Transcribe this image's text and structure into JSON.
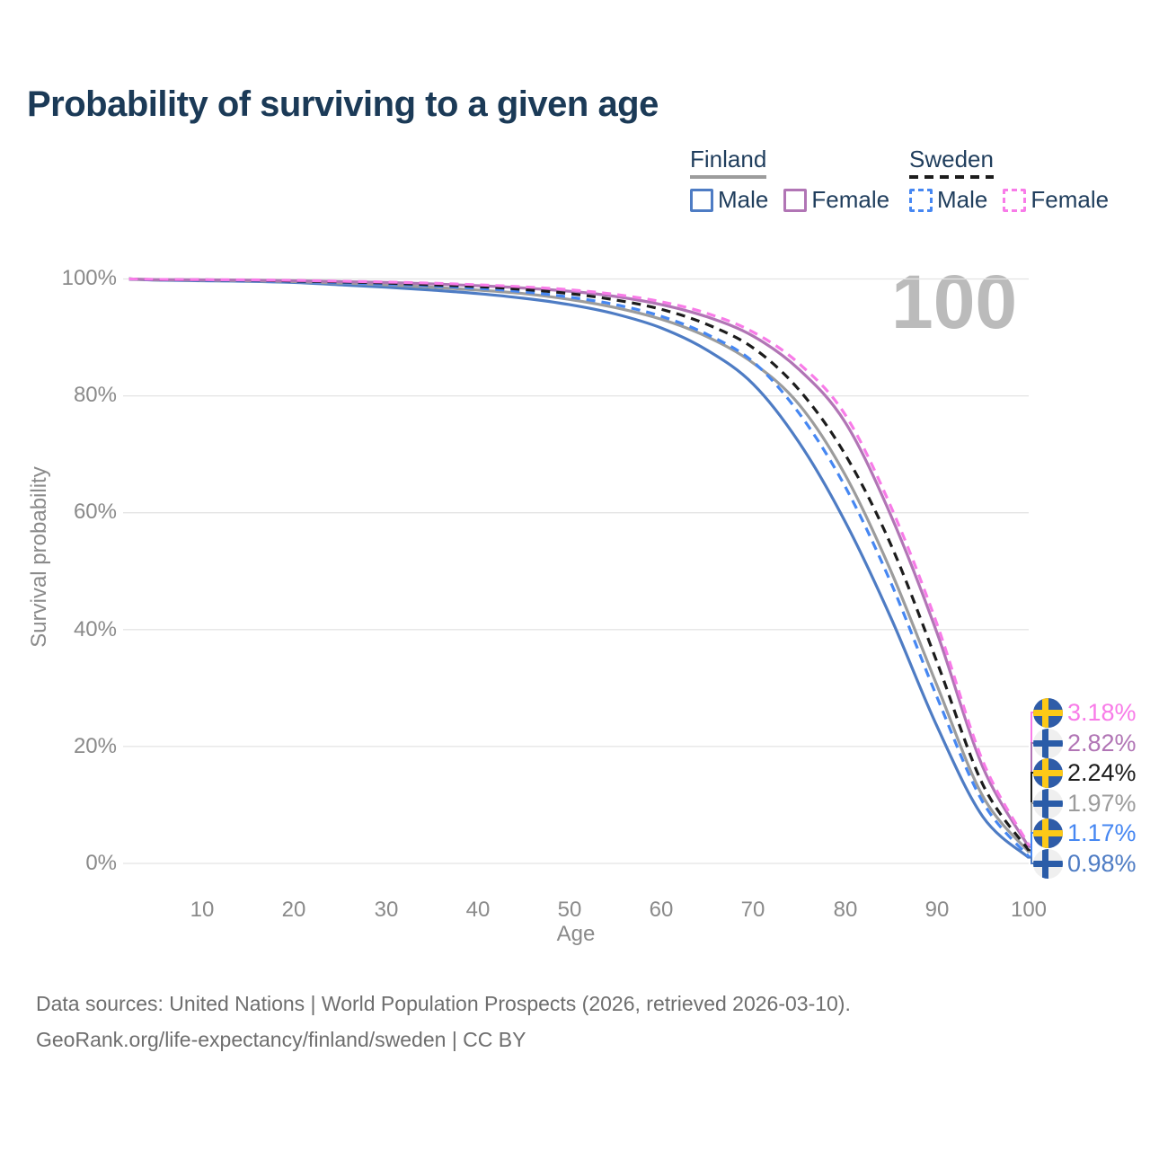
{
  "title": "Probability of surviving to a given age",
  "watermark": "100",
  "legend": {
    "groups": [
      {
        "label": "Finland",
        "line_style": "solid",
        "color": "#9C9C9C",
        "items": [
          {
            "label": "Male",
            "color": "#4E7CC4",
            "dashed": false
          },
          {
            "label": "Female",
            "color": "#B175B5",
            "dashed": false
          }
        ]
      },
      {
        "label": "Sweden",
        "line_style": "dashed",
        "color": "#1C1C1C",
        "items": [
          {
            "label": "Male",
            "color": "#4687F2",
            "dashed": true
          },
          {
            "label": "Female",
            "color": "#F87BE8",
            "dashed": true
          }
        ]
      }
    ]
  },
  "y_axis": {
    "title": "Survival probability",
    "ticks": [
      "100%",
      "80%",
      "60%",
      "40%",
      "20%",
      "0%"
    ]
  },
  "x_axis": {
    "title": "Age",
    "ticks": [
      "10",
      "20",
      "30",
      "40",
      "50",
      "60",
      "70",
      "80",
      "90",
      "100"
    ]
  },
  "end_labels": [
    {
      "series": "Sweden Female",
      "value": "3.18%",
      "color": "#F87BE8",
      "country": "sweden"
    },
    {
      "series": "Finland Female",
      "value": "2.82%",
      "color": "#B175B5",
      "country": "finland"
    },
    {
      "series": "Sweden Total",
      "value": "2.24%",
      "color": "#1C1C1C",
      "country": "sweden"
    },
    {
      "series": "Finland Total",
      "value": "1.97%",
      "color": "#9C9C9C",
      "country": "finland"
    },
    {
      "series": "Sweden Male",
      "value": "1.17%",
      "color": "#4687F2",
      "country": "sweden"
    },
    {
      "series": "Finland Male",
      "value": "0.98%",
      "color": "#4E7CC4",
      "country": "finland"
    }
  ],
  "footer": {
    "line1": "Data sources: United Nations | World Population Prospects (2026, retrieved 2026-03-10).",
    "line2": "GeoRank.org/life-expectancy/finland/sweden | CC BY"
  },
  "chart_data": {
    "type": "line",
    "title": "Probability of surviving to a given age",
    "xlabel": "Age",
    "ylabel": "Survival probability",
    "xlim": [
      0,
      100
    ],
    "ylim": [
      0,
      100
    ],
    "grid": "horizontal",
    "grid_color": "#E4E4E4",
    "legend_position": "top-right",
    "x": [
      2,
      5,
      10,
      15,
      20,
      25,
      30,
      35,
      40,
      45,
      50,
      55,
      60,
      65,
      70,
      75,
      80,
      85,
      90,
      95,
      100
    ],
    "series": [
      {
        "name": "Finland Male",
        "country": "finland",
        "sex": "male",
        "style": "solid",
        "color": "#4E7CC4",
        "final_label": "0.98%",
        "values": [
          100,
          99.8,
          99.7,
          99.6,
          99.4,
          99.0,
          98.6,
          98.1,
          97.5,
          96.7,
          95.6,
          94.0,
          91.6,
          87.8,
          82.0,
          72.0,
          58.5,
          42.0,
          23.5,
          8.0,
          0.98
        ]
      },
      {
        "name": "Finland Total",
        "country": "finland",
        "sex": "both",
        "style": "solid",
        "color": "#9C9C9C",
        "final_label": "1.97%",
        "values": [
          100,
          99.85,
          99.8,
          99.7,
          99.55,
          99.3,
          99.0,
          98.6,
          98.1,
          97.5,
          96.5,
          95.1,
          93.1,
          90.1,
          85.6,
          78.5,
          66.5,
          50.0,
          30.5,
          11.5,
          1.97
        ]
      },
      {
        "name": "Finland Female",
        "country": "finland",
        "sex": "female",
        "style": "solid",
        "color": "#B175B5",
        "final_label": "2.82%",
        "values": [
          100,
          99.9,
          99.85,
          99.8,
          99.7,
          99.55,
          99.4,
          99.15,
          98.85,
          98.45,
          97.9,
          97.0,
          95.6,
          93.5,
          90.2,
          84.5,
          75.5,
          59.5,
          39.5,
          16.5,
          2.82
        ]
      },
      {
        "name": "Sweden Male",
        "country": "sweden",
        "sex": "male",
        "style": "dashed",
        "color": "#4687F2",
        "final_label": "1.17%",
        "values": [
          100,
          99.85,
          99.8,
          99.7,
          99.55,
          99.35,
          99.1,
          98.8,
          98.4,
          97.8,
          96.9,
          95.6,
          93.6,
          90.5,
          85.8,
          77.0,
          64.5,
          48.0,
          28.5,
          10.5,
          1.17
        ]
      },
      {
        "name": "Sweden Total",
        "country": "sweden",
        "sex": "both",
        "style": "dashed",
        "color": "#1C1C1C",
        "final_label": "2.24%",
        "values": [
          100,
          99.9,
          99.85,
          99.8,
          99.65,
          99.5,
          99.3,
          99.0,
          98.7,
          98.2,
          97.5,
          96.4,
          94.8,
          92.2,
          88.2,
          81.0,
          70.0,
          54.5,
          34.5,
          13.5,
          2.24
        ]
      },
      {
        "name": "Sweden Female",
        "country": "sweden",
        "sex": "female",
        "style": "dashed",
        "color": "#F87BE8",
        "final_label": "3.18%",
        "values": [
          100,
          99.92,
          99.88,
          99.84,
          99.75,
          99.62,
          99.48,
          99.28,
          99.0,
          98.65,
          98.15,
          97.35,
          96.1,
          94.1,
          90.9,
          85.5,
          76.8,
          61.0,
          41.0,
          17.5,
          3.18
        ]
      }
    ]
  }
}
